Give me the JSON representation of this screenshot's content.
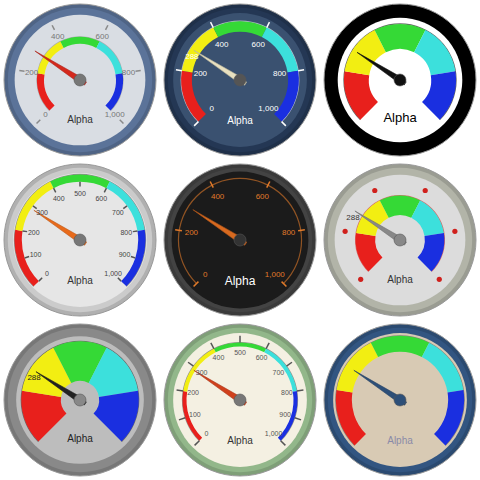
{
  "chart_data": [
    {
      "type": "gauge",
      "title": "Alpha",
      "value": 288,
      "ylim": [
        0,
        1000
      ],
      "yticks": [
        0,
        200,
        400,
        600,
        800,
        {
          "value": 1000,
          "label": "1,000"
        }
      ],
      "bands": [
        {
          "from": 0,
          "to": 200,
          "color": "#e8201c"
        },
        {
          "from": 200,
          "to": 400,
          "color": "#f2ee12"
        },
        {
          "from": 400,
          "to": 600,
          "color": "#35d936"
        },
        {
          "from": 600,
          "to": 800,
          "color": "#3ce0dc"
        },
        {
          "from": 800,
          "to": 1000,
          "color": "#1a2fe0"
        }
      ],
      "data_labels": false
    },
    {
      "type": "gauge",
      "title": "Alpha",
      "value": 288,
      "ylim": [
        0,
        1000
      ],
      "yticks": [
        0,
        200,
        400,
        600,
        800,
        {
          "value": 1000,
          "label": "1,000"
        }
      ],
      "bands": [
        {
          "from": 0,
          "to": 200,
          "color": "#e8201c"
        },
        {
          "from": 200,
          "to": 400,
          "color": "#f2ee12"
        },
        {
          "from": 400,
          "to": 600,
          "color": "#35d936"
        },
        {
          "from": 600,
          "to": 800,
          "color": "#3ce0dc"
        },
        {
          "from": 800,
          "to": 1000,
          "color": "#1a2fe0"
        }
      ],
      "data_labels": true
    },
    {
      "type": "gauge",
      "title": "Alpha",
      "value": 288,
      "ylim": [
        0,
        1000
      ],
      "tick_labels": false,
      "bands": [
        {
          "from": 0,
          "to": 200,
          "color": "#e8201c"
        },
        {
          "from": 200,
          "to": 400,
          "color": "#f2ee12"
        },
        {
          "from": 400,
          "to": 600,
          "color": "#35d936"
        },
        {
          "from": 600,
          "to": 800,
          "color": "#3ce0dc"
        },
        {
          "from": 800,
          "to": 1000,
          "color": "#1a2fe0"
        }
      ],
      "data_labels": false
    },
    {
      "type": "gauge",
      "title": "Alpha",
      "value": 288,
      "ylim": [
        0,
        1000
      ],
      "yticks": [
        0,
        100,
        200,
        300,
        400,
        500,
        600,
        700,
        800,
        900,
        {
          "value": 1000,
          "label": "1,000"
        }
      ],
      "bands": [
        {
          "from": 0,
          "to": 200,
          "color": "#e8201c"
        },
        {
          "from": 200,
          "to": 400,
          "color": "#f2ee12"
        },
        {
          "from": 400,
          "to": 600,
          "color": "#35d936"
        },
        {
          "from": 600,
          "to": 800,
          "color": "#3ce0dc"
        },
        {
          "from": 800,
          "to": 1000,
          "color": "#1a2fe0"
        }
      ],
      "data_labels": false
    },
    {
      "type": "gauge",
      "title": "Alpha",
      "value": 288,
      "ylim": [
        0,
        1000
      ],
      "yticks": [
        0,
        200,
        400,
        600,
        800,
        {
          "value": 1000,
          "label": "1,000"
        }
      ],
      "bands": [],
      "data_labels": false
    },
    {
      "type": "gauge",
      "title": "Alpha",
      "value": 288,
      "ylim": [
        0,
        1000
      ],
      "yticks": [
        0,
        200,
        400,
        600,
        800,
        1000
      ],
      "tick_labels": false,
      "bands": [
        {
          "from": 0,
          "to": 200,
          "color": "#e8201c"
        },
        {
          "from": 200,
          "to": 400,
          "color": "#f2ee12"
        },
        {
          "from": 400,
          "to": 600,
          "color": "#35d936"
        },
        {
          "from": 600,
          "to": 800,
          "color": "#3ce0dc"
        },
        {
          "from": 800,
          "to": 1000,
          "color": "#1a2fe0"
        }
      ],
      "data_labels": true
    },
    {
      "type": "gauge",
      "title": "Alpha",
      "value": 288,
      "ylim": [
        0,
        1000
      ],
      "tick_labels": false,
      "bands": [
        {
          "from": 0,
          "to": 200,
          "color": "#e8201c"
        },
        {
          "from": 200,
          "to": 400,
          "color": "#f2ee12"
        },
        {
          "from": 400,
          "to": 600,
          "color": "#35d936"
        },
        {
          "from": 600,
          "to": 800,
          "color": "#3ce0dc"
        },
        {
          "from": 800,
          "to": 1000,
          "color": "#1a2fe0"
        }
      ],
      "data_labels": true
    },
    {
      "type": "gauge",
      "title": "Alpha",
      "value": 288,
      "ylim": [
        0,
        1000
      ],
      "yticks": [
        0,
        100,
        200,
        300,
        400,
        500,
        600,
        700,
        800,
        900,
        {
          "value": 1000,
          "label": "1,000"
        }
      ],
      "bands": [
        {
          "from": 0,
          "to": 200,
          "color": "#e8201c"
        },
        {
          "from": 200,
          "to": 400,
          "color": "#f2ee12"
        },
        {
          "from": 400,
          "to": 600,
          "color": "#35d936"
        },
        {
          "from": 600,
          "to": 800,
          "color": "#3ce0dc"
        },
        {
          "from": 800,
          "to": 1000,
          "color": "#1a2fe0"
        }
      ],
      "data_labels": false
    },
    {
      "type": "gauge",
      "title": "Alpha",
      "value": 288,
      "ylim": [
        0,
        1000
      ],
      "tick_labels": false,
      "bands": [
        {
          "from": 0,
          "to": 200,
          "color": "#e8201c"
        },
        {
          "from": 200,
          "to": 400,
          "color": "#f2ee12"
        },
        {
          "from": 400,
          "to": 600,
          "color": "#35d936"
        },
        {
          "from": 600,
          "to": 800,
          "color": "#3ce0dc"
        },
        {
          "from": 800,
          "to": 1000,
          "color": "#1a2fe0"
        }
      ],
      "data_labels": false
    }
  ]
}
